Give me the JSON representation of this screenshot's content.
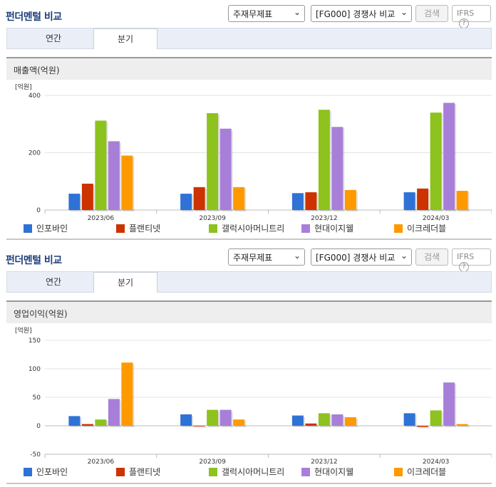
{
  "sections": [
    {
      "title": "펀더멘털 비교",
      "select_statement": "주재무제표",
      "select_compare": "[FG000] 경쟁사 비교",
      "search_label": "검색",
      "ifrs_label": "IFRS",
      "help_glyph": "?",
      "tabs": [
        {
          "label": "연간"
        },
        {
          "label": "분기"
        }
      ],
      "active_tab": 1,
      "subheader": "매출액(억원)"
    },
    {
      "title": "펀더멘털 비교",
      "select_statement": "주재무제표",
      "select_compare": "[FG000] 경쟁사 비교",
      "search_label": "검색",
      "ifrs_label": "IFRS",
      "help_glyph": "?",
      "tabs": [
        {
          "label": "연간"
        },
        {
          "label": "분기"
        }
      ],
      "active_tab": 1,
      "subheader": "영업이익(억원)"
    }
  ],
  "colors": {
    "인포바인": "#2f72d6",
    "플랜티넷": "#cc3300",
    "갤럭시아머니트리": "#8dc21f",
    "현대이지웰": "#a87fd8",
    "이크레더블": "#ff9900"
  },
  "chart_data": [
    {
      "type": "bar",
      "unit_label": "[억원]",
      "categories": [
        "2023/06",
        "2023/09",
        "2023/12",
        "2024/03"
      ],
      "ylim": [
        0,
        400
      ],
      "yticks": [
        0,
        200,
        400
      ],
      "series": [
        {
          "name": "인포바인",
          "values": [
            57,
            57,
            59,
            62
          ]
        },
        {
          "name": "플랜티넷",
          "values": [
            92,
            80,
            62,
            75
          ]
        },
        {
          "name": "갤럭시아머니트리",
          "values": [
            312,
            338,
            350,
            340
          ]
        },
        {
          "name": "현대이지웰",
          "values": [
            240,
            284,
            290,
            374
          ]
        },
        {
          "name": "이크레더블",
          "values": [
            190,
            80,
            70,
            67
          ]
        }
      ],
      "grid": true,
      "legend": "bottom"
    },
    {
      "type": "bar",
      "unit_label": "[억원]",
      "categories": [
        "2023/06",
        "2023/09",
        "2023/12",
        "2024/03"
      ],
      "ylim": [
        -50,
        150
      ],
      "yticks": [
        -50,
        0,
        50,
        100,
        150
      ],
      "series": [
        {
          "name": "인포바인",
          "values": [
            17,
            20,
            18,
            22
          ]
        },
        {
          "name": "플랜티넷",
          "values": [
            3,
            0,
            4,
            -2
          ]
        },
        {
          "name": "갤럭시아머니트리",
          "values": [
            11,
            28,
            22,
            27
          ]
        },
        {
          "name": "현대이지웰",
          "values": [
            47,
            28,
            20,
            76
          ]
        },
        {
          "name": "이크레더블",
          "values": [
            111,
            11,
            15,
            3
          ]
        }
      ],
      "grid": true,
      "legend": "bottom"
    }
  ]
}
